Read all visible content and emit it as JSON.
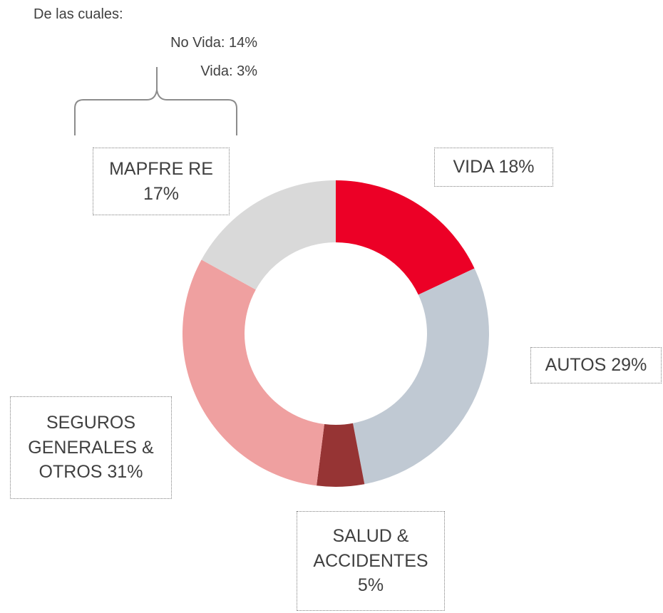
{
  "chart_data": {
    "type": "donut",
    "categories": [
      "VIDA",
      "AUTOS",
      "SALUD & ACCIDENTES",
      "SEGUROS GENERALES & OTROS",
      "MAPFRE RE"
    ],
    "values": [
      18,
      29,
      5,
      31,
      17
    ],
    "value_labels": [
      "18%",
      "29%",
      "5%",
      "31%",
      "17%"
    ],
    "colors": [
      "#ec0026",
      "#c0c9d3",
      "#963434",
      "#efa0a0",
      "#d9d9d9"
    ],
    "annotations": [
      "De las cuales:",
      "No Vida: 14%",
      "Vida: 3%"
    ]
  }
}
